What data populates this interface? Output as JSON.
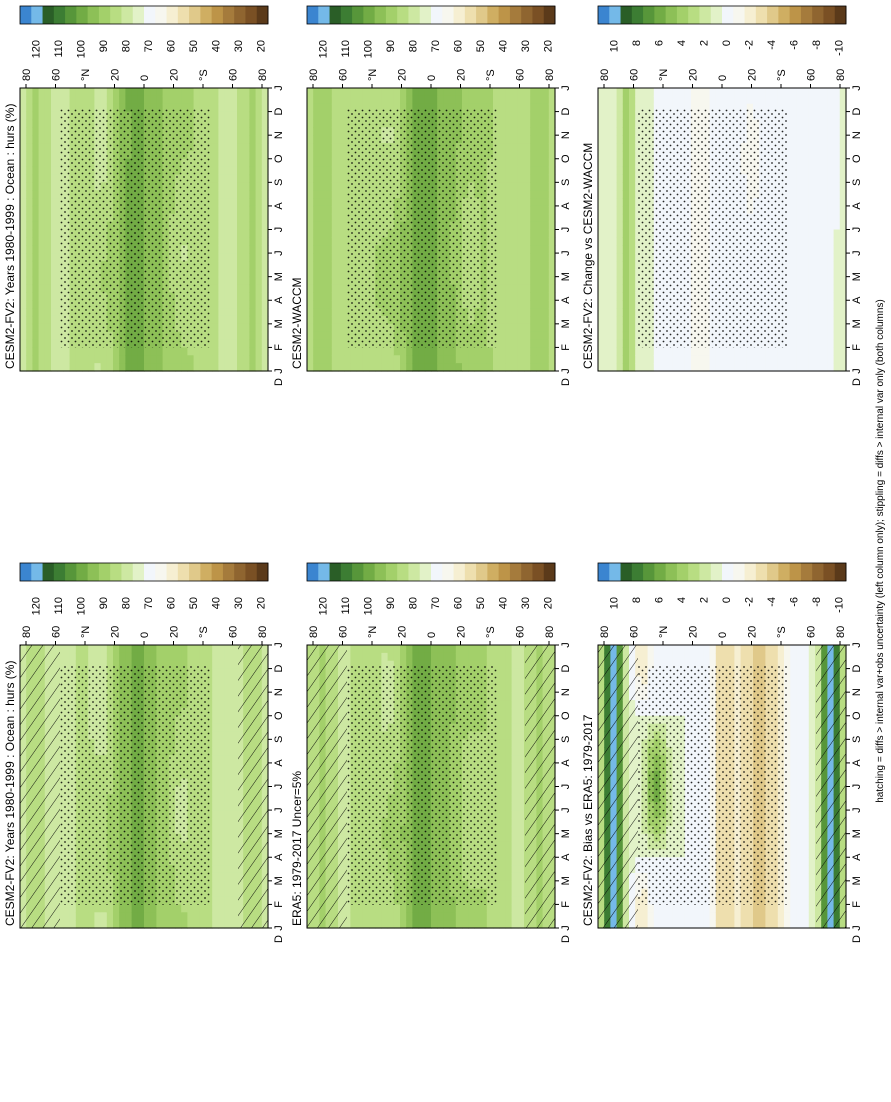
{
  "figure": {
    "footnote": "hatching = diffs > internal var+obs uncertainty (left column only); stippling = diffs > internal var only (both columns)"
  },
  "chart_data": [
    {
      "type": "heatmap",
      "title": "CESM2-FV2: Years 1980-1999 : Ocean : hurs (%)",
      "months": [
        "J",
        "F",
        "M",
        "A",
        "M",
        "J",
        "J",
        "A",
        "S",
        "O",
        "N",
        "D",
        "J"
      ],
      "lat_ticks": [
        "80",
        "60",
        "°N",
        "20",
        "0",
        "20",
        "°S",
        "60",
        "80"
      ],
      "colorbar": {
        "ticks": [
          "120",
          "110",
          "100",
          "90",
          "80",
          "70",
          "60",
          "50",
          "40",
          "30",
          "20"
        ],
        "palette": "abs"
      },
      "field": "abs",
      "variant": 0,
      "hatch": true
    },
    {
      "type": "heatmap",
      "title": "CESM2-FV2: Years 1980-1999 : Ocean : hurs (%)",
      "months": [
        "J",
        "F",
        "M",
        "A",
        "M",
        "J",
        "J",
        "A",
        "S",
        "O",
        "N",
        "D",
        "J"
      ],
      "lat_ticks": [
        "80",
        "60",
        "°N",
        "20",
        "0",
        "20",
        "°S",
        "60",
        "80"
      ],
      "colorbar": {
        "ticks": [
          "120",
          "110",
          "100",
          "90",
          "80",
          "70",
          "60",
          "50",
          "40",
          "30",
          "20"
        ],
        "palette": "abs"
      },
      "field": "abs",
      "variant": 1,
      "hatch": false
    },
    {
      "type": "heatmap",
      "title": "ERA5: 1979-2017 Uncer=5%",
      "months": [
        "J",
        "F",
        "M",
        "A",
        "M",
        "J",
        "J",
        "A",
        "S",
        "O",
        "N",
        "D",
        "J"
      ],
      "lat_ticks": [
        "80",
        "60",
        "°N",
        "20",
        "0",
        "20",
        "°S",
        "60",
        "80"
      ],
      "colorbar": {
        "ticks": [
          "120",
          "110",
          "100",
          "90",
          "80",
          "70",
          "60",
          "50",
          "40",
          "30",
          "20"
        ],
        "palette": "abs"
      },
      "field": "abs",
      "variant": 2,
      "hatch": true
    },
    {
      "type": "heatmap",
      "title": "CESM2-WACCM",
      "months": [
        "J",
        "F",
        "M",
        "A",
        "M",
        "J",
        "J",
        "A",
        "S",
        "O",
        "N",
        "D",
        "J"
      ],
      "lat_ticks": [
        "80",
        "60",
        "°N",
        "20",
        "0",
        "20",
        "°S",
        "60",
        "80"
      ],
      "colorbar": {
        "ticks": [
          "120",
          "110",
          "100",
          "90",
          "80",
          "70",
          "60",
          "50",
          "40",
          "30",
          "20"
        ],
        "palette": "abs"
      },
      "field": "abs",
      "variant": 3,
      "hatch": false
    },
    {
      "type": "heatmap",
      "title": "CESM2-FV2: Bias vs ERA5: 1979-2017",
      "months": [
        "J",
        "F",
        "M",
        "A",
        "M",
        "J",
        "J",
        "A",
        "S",
        "O",
        "N",
        "D",
        "J"
      ],
      "lat_ticks": [
        "80",
        "60",
        "°N",
        "20",
        "0",
        "20",
        "°S",
        "60",
        "80"
      ],
      "colorbar": {
        "ticks": [
          "10",
          "8",
          "6",
          "4",
          "2",
          "0",
          "-2",
          "-4",
          "-6",
          "-8",
          "-10"
        ],
        "palette": "diff"
      },
      "field": "bias",
      "variant": 0,
      "hatch": true
    },
    {
      "type": "heatmap",
      "title": "CESM2-FV2: Change vs CESM2-WACCM",
      "months": [
        "J",
        "F",
        "M",
        "A",
        "M",
        "J",
        "J",
        "A",
        "S",
        "O",
        "N",
        "D",
        "J"
      ],
      "lat_ticks": [
        "80",
        "60",
        "°N",
        "20",
        "0",
        "20",
        "°S",
        "60",
        "80"
      ],
      "colorbar": {
        "ticks": [
          "10",
          "8",
          "6",
          "4",
          "2",
          "0",
          "-2",
          "-4",
          "-6",
          "-8",
          "-10"
        ],
        "palette": "diff"
      },
      "field": "change",
      "variant": 1,
      "hatch": false
    }
  ],
  "palettes": {
    "abs": [
      "#5b3a1a",
      "#7a5024",
      "#8f6530",
      "#a57b3c",
      "#bd9448",
      "#cfae62",
      "#e0c98a",
      "#eedfae",
      "#f6efd2",
      "#f7f7ef",
      "#f2f6fb",
      "#e2f2c8",
      "#cde8a2",
      "#b8dd82",
      "#a3d06a",
      "#8dc057",
      "#72ac45",
      "#57963a",
      "#3c7d33",
      "#2a5e27",
      "#74b9e8",
      "#3b85d0"
    ],
    "diff": [
      "#5b3a1a",
      "#7a5024",
      "#8f6530",
      "#a57b3c",
      "#bd9448",
      "#cfae62",
      "#e0c98a",
      "#eedfae",
      "#f6efd2",
      "#f7f7ef",
      "#f2f6fb",
      "#e2f2c8",
      "#cde8a2",
      "#b8dd82",
      "#a3d06a",
      "#8dc057",
      "#72ac45",
      "#57963a",
      "#3c7d33",
      "#2a5e27",
      "#74b9e8",
      "#3b85d0"
    ]
  }
}
